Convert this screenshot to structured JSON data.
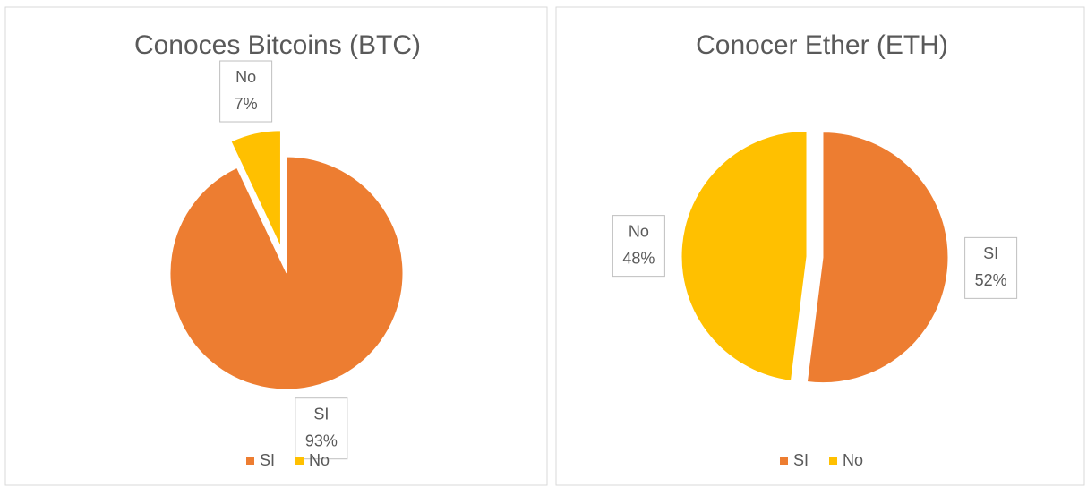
{
  "chart_data": [
    {
      "type": "pie",
      "title": "Conoces Bitcoins (BTC)",
      "categories": [
        "SI",
        "No"
      ],
      "values": [
        93,
        7
      ],
      "value_labels": [
        "93%",
        "7%"
      ],
      "colors": [
        "#ed7d31",
        "#ffc000"
      ],
      "legend": "bottom"
    },
    {
      "type": "pie",
      "title": "Conocer Ether (ETH)",
      "categories": [
        "SI",
        "No"
      ],
      "values": [
        52,
        48
      ],
      "value_labels": [
        "52%",
        "48%"
      ],
      "colors": [
        "#ed7d31",
        "#ffc000"
      ],
      "legend": "bottom"
    }
  ]
}
